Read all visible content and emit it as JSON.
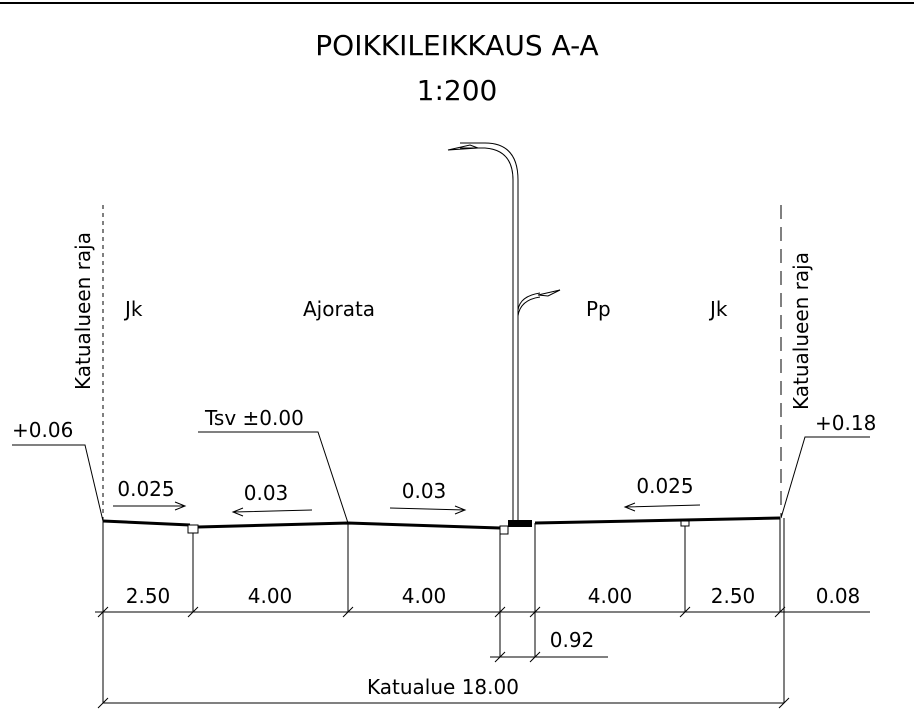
{
  "title": "POIKKILEIKKAUS A-A",
  "scale": "1:200",
  "boundary_labels": [
    "Katualueen raja",
    "Katualueen raja"
  ],
  "zones": [
    "Jk",
    "Ajorata",
    "Pp",
    "Jk"
  ],
  "levels": [
    "+0.06",
    "Tsv ±0.00",
    "+0.18"
  ],
  "slopes": [
    "0.025",
    "0.03",
    "0.03",
    "0.025"
  ],
  "dimensions": [
    "2.50",
    "4.00",
    "4.00",
    "4.00",
    "2.50",
    "0.08"
  ],
  "sub_dimension": "0.92",
  "total_dimension": "Katualue 18.00"
}
